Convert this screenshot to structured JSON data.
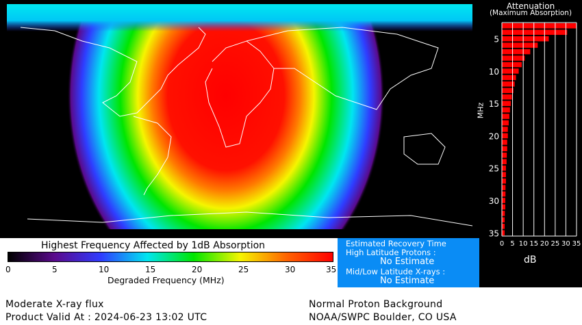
{
  "map": {
    "description_colors": {
      "background": "#000000",
      "coastline": "#ffffff"
    }
  },
  "colorbar": {
    "title": "Highest Frequency Affected by 1dB Absorption",
    "xlabel": "Degraded Frequency (MHz)",
    "ticks": [
      "0",
      "5",
      "10",
      "15",
      "20",
      "25",
      "30",
      "35"
    ],
    "range": [
      0,
      35
    ],
    "colors": [
      "#000000",
      "#5a0a8c",
      "#2f3cff",
      "#00e6f0",
      "#00e600",
      "#f5f500",
      "#ff6400",
      "#ff0000"
    ]
  },
  "recovery": {
    "title": "Estimated Recovery Time",
    "high_lat_label": "High Latitude Protons :",
    "high_lat_value": "No Estimate",
    "mid_low_label": "Mid/Low Latitude X-rays :",
    "mid_low_value": "No Estimate"
  },
  "footer": {
    "xray_status": "Moderate X-ray flux",
    "valid_at": "Product Valid At : 2024-06-23 13:02 UTC",
    "proton_status": "Normal Proton Background",
    "source": "NOAA/SWPC Boulder, CO USA"
  },
  "chart_data": {
    "type": "bar",
    "orientation": "horizontal",
    "title": "Attenuation",
    "subtitle": "(Maximum Absorption)",
    "xlabel": "dB",
    "ylabel": "MHz",
    "xlim": [
      0,
      35
    ],
    "ylim": [
      2.5,
      35.5
    ],
    "xticks": [
      "0",
      "5",
      "10",
      "15",
      "20",
      "25",
      "30",
      "35"
    ],
    "yticks": [
      "5",
      "10",
      "15",
      "20",
      "25",
      "30",
      "35"
    ],
    "grid": "vertical",
    "bar_color": "#ff0000",
    "categories": [
      3,
      4,
      5,
      6,
      7,
      8,
      9,
      10,
      11,
      12,
      13,
      14,
      15,
      16,
      17,
      18,
      19,
      20,
      21,
      22,
      23,
      24,
      25,
      26,
      27,
      28,
      29,
      30,
      31,
      32,
      33,
      34,
      35
    ],
    "values": [
      35,
      30.6,
      22,
      16.8,
      13.3,
      10.7,
      9.3,
      7.9,
      6.6,
      6.0,
      5.4,
      4.7,
      4.2,
      3.8,
      3.5,
      3.2,
      2.8,
      2.8,
      2.5,
      2.5,
      2.3,
      2.2,
      1.9,
      1.9,
      1.9,
      1.7,
      1.7,
      1.6,
      1.6,
      1.4,
      1.3,
      1.3,
      1.3
    ]
  }
}
